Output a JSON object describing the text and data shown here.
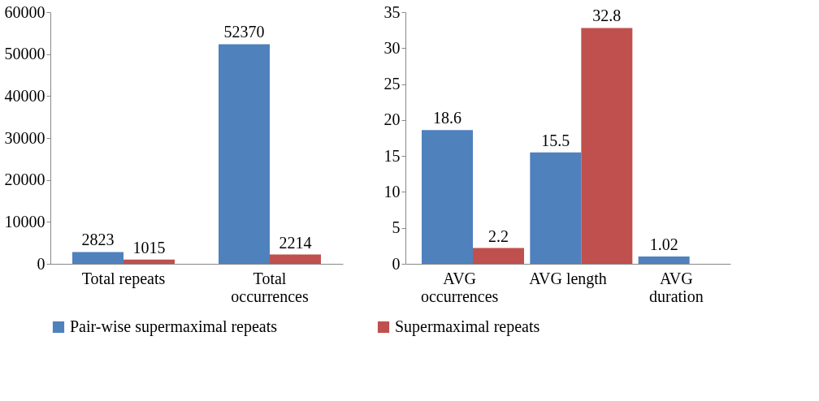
{
  "chart_data": [
    {
      "type": "bar",
      "categories": [
        "Total repeats",
        "Total occurrences"
      ],
      "series": [
        {
          "name": "Pair-wise supermaximal repeats",
          "color": "#4f81bd",
          "values": [
            2823,
            52370
          ]
        },
        {
          "name": "Supermaximal repeats",
          "color": "#c0504d",
          "values": [
            1015,
            2214
          ]
        }
      ],
      "ylim": [
        0,
        60000
      ],
      "yticks": [
        0,
        10000,
        20000,
        30000,
        40000,
        50000,
        60000
      ],
      "data_labels": true,
      "grid": false,
      "legend": "bottom"
    },
    {
      "type": "bar",
      "categories": [
        "AVG occurrences",
        "AVG length",
        "AVG duration"
      ],
      "series": [
        {
          "name": "Pair-wise supermaximal repeats",
          "color": "#4f81bd",
          "values": [
            18.6,
            15.5,
            1.02
          ]
        },
        {
          "name": "Supermaximal repeats",
          "color": "#c0504d",
          "values": [
            2.2,
            32.8,
            null
          ]
        }
      ],
      "ylim": [
        0,
        35
      ],
      "yticks": [
        0,
        5,
        10,
        15,
        20,
        25,
        30,
        35
      ],
      "data_labels": true,
      "grid": false,
      "legend": "bottom"
    }
  ]
}
